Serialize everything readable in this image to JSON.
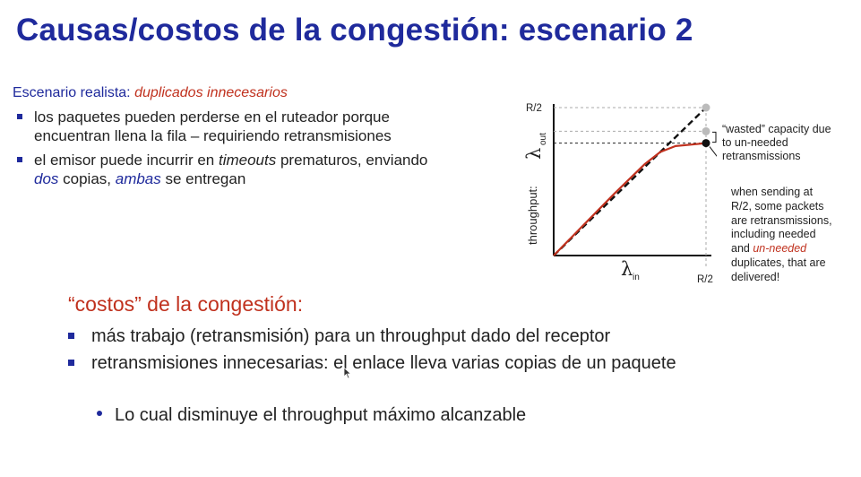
{
  "title": "Causas/costos de la congestión: escenario 2",
  "scenario": {
    "prefix": "Escenario realista: ",
    "emphasis": "duplicados innecesarios"
  },
  "bullets": [
    {
      "text": "los paquetes pueden perderse en el ruteador porque encuentran llena la fila – requiriendo retransmisiones"
    },
    {
      "parts": {
        "a": "el emisor puede incurrir en ",
        "b": "timeouts",
        "c": " prematuros, enviando ",
        "d": "dos",
        "e": " copias, ",
        "f": "ambas",
        "g": " se entregan"
      }
    }
  ],
  "chart_data": {
    "type": "line",
    "x_axis": {
      "label_symbol": "λ",
      "label_sub": "in",
      "tick_labels": [
        "R/2"
      ],
      "range": [
        0,
        0.5
      ]
    },
    "y_axis": {
      "label_text": "throughput:",
      "label_symbol": "λ",
      "label_sub": "out",
      "tick_labels": [
        "R/2"
      ],
      "range": [
        0,
        0.5
      ]
    },
    "series": [
      {
        "style": "dashed black (ideal)",
        "points": [
          [
            0,
            0
          ],
          [
            0.5,
            0.5
          ]
        ]
      },
      {
        "style": "solid red (actual)",
        "points": [
          [
            0,
            0
          ],
          [
            0.1,
            0.105
          ],
          [
            0.2,
            0.21
          ],
          [
            0.3,
            0.31
          ],
          [
            0.35,
            0.35
          ],
          [
            0.4,
            0.37
          ],
          [
            0.45,
            0.375
          ],
          [
            0.5,
            0.38
          ]
        ]
      }
    ],
    "markers": [
      {
        "x": 0.5,
        "y": 0.5,
        "color": "#bbbbbb"
      },
      {
        "x": 0.5,
        "y": 0.42,
        "color": "#bbbbbb"
      },
      {
        "x": 0.5,
        "y": 0.38,
        "color": "#111111"
      }
    ],
    "annotations": [
      {
        "lines": [
          "“wasted” capacity due",
          "to un-needed",
          "retransmissions"
        ]
      },
      {
        "lines": [
          "when sending at",
          "R/2, some packets",
          "are retransmissions,",
          "including needed"
        ],
        "line5_prefix": "and ",
        "line5_emphasis": "un-needed",
        "tail_lines": [
          "duplicates, that are",
          "delivered!"
        ]
      }
    ]
  },
  "costs": {
    "heading": "“costos” de la congestión:",
    "items": [
      "más trabajo (retransmisión) para un throughput dado del receptor",
      "retransmisiones innecesarias: el enlace lleva varias copias de un paquete"
    ],
    "sub_item": "Lo cual disminuye el throughput máximo alcanzable"
  },
  "colors": {
    "title": "#1f2a9c",
    "accent_red": "#c0311e",
    "bullet_blue": "#1f2a9c"
  }
}
